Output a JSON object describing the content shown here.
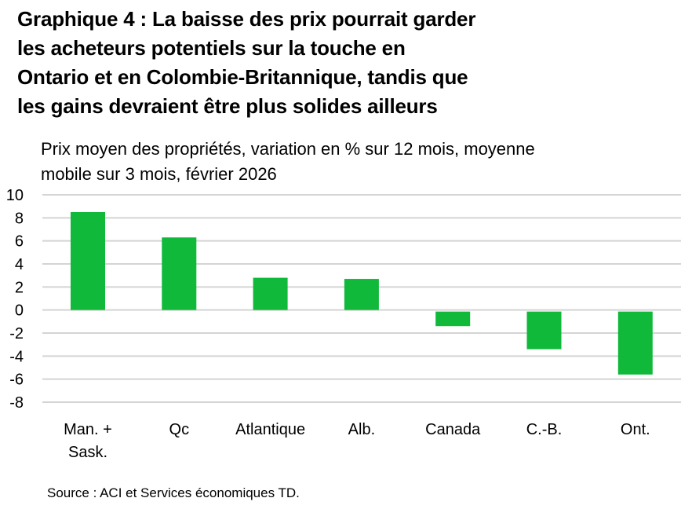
{
  "chart_data": {
    "type": "bar",
    "title_lines": [
      "Graphique 4 : La baisse des prix pourrait garder",
      "les acheteurs potentiels sur la touche en",
      "Ontario et en Colombie-Britannique, tandis que",
      "les gains devraient être plus solides ailleurs"
    ],
    "subtitle_lines": [
      "Prix moyen des propriétés, variation en % sur 12 mois, moyenne",
      "mobile sur 3 mois, février 2026"
    ],
    "categories": [
      [
        "Man. +",
        "Sask."
      ],
      [
        "Qc"
      ],
      [
        "Atlantique"
      ],
      [
        "Alb."
      ],
      [
        "Canada"
      ],
      [
        "C.-B."
      ],
      [
        "Ont."
      ]
    ],
    "values": [
      8.5,
      6.3,
      2.8,
      2.7,
      -1.4,
      -3.4,
      -5.6
    ],
    "ylim": [
      -8,
      10
    ],
    "yticks": [
      "10",
      "8",
      "6",
      "4",
      "2",
      "0",
      "-2",
      "-4",
      "-6",
      "-8"
    ],
    "grid": true,
    "bar_color": "#10b93a",
    "grid_color": "#d4d4d4",
    "source": "Source : ACI et Services économiques TD."
  }
}
